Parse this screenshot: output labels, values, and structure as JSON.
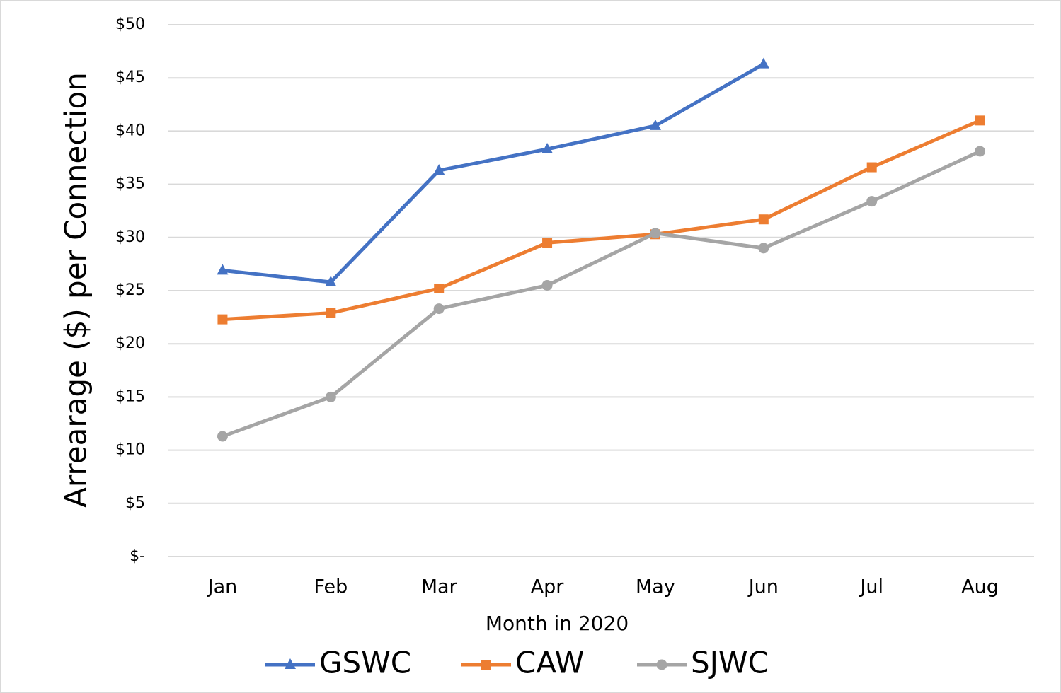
{
  "chart_data": {
    "type": "line",
    "y_axis_label": "Arrearage ($) per Connection",
    "x_axis_label": "Month in 2020",
    "categories": [
      "Jan",
      "Feb",
      "Mar",
      "Apr",
      "May",
      "Jun",
      "Jul",
      "Aug"
    ],
    "series": [
      {
        "name": "GSWC",
        "color": "#4472c4",
        "marker": "triangle",
        "values": [
          26.9,
          25.8,
          36.3,
          38.3,
          40.5,
          46.3,
          null,
          null
        ]
      },
      {
        "name": "CAW",
        "color": "#ed7d31",
        "marker": "square",
        "values": [
          22.3,
          22.9,
          25.2,
          29.5,
          30.3,
          31.7,
          36.6,
          41.0
        ]
      },
      {
        "name": "SJWC",
        "color": "#a5a5a5",
        "marker": "circle",
        "values": [
          11.3,
          15.0,
          23.3,
          25.5,
          30.4,
          29.0,
          33.4,
          38.1
        ]
      }
    ],
    "ylim": [
      0,
      50
    ],
    "yticks": [
      {
        "value": 0,
        "label": "$-"
      },
      {
        "value": 5,
        "label": "$5"
      },
      {
        "value": 10,
        "label": "$10"
      },
      {
        "value": 15,
        "label": "$15"
      },
      {
        "value": 20,
        "label": "$20"
      },
      {
        "value": 25,
        "label": "$25"
      },
      {
        "value": 30,
        "label": "$30"
      },
      {
        "value": 35,
        "label": "$35"
      },
      {
        "value": 40,
        "label": "$40"
      },
      {
        "value": 45,
        "label": "$45"
      },
      {
        "value": 50,
        "label": "$50"
      }
    ],
    "grid": true,
    "legend": "bottom"
  }
}
